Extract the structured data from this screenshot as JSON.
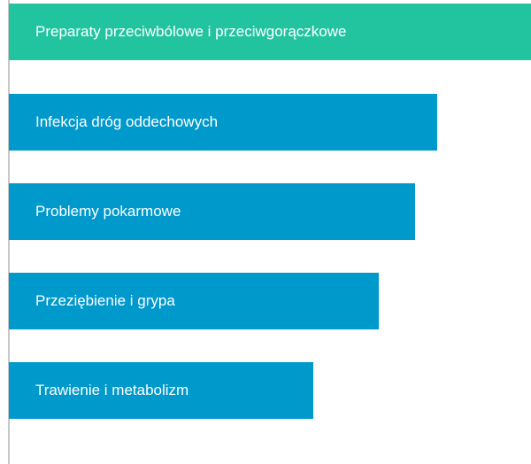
{
  "menu": {
    "items": [
      {
        "label": "Preparaty przeciwbólowe i przeciwgorączkowe"
      },
      {
        "label": "Infekcja dróg oddechowych"
      },
      {
        "label": "Problemy pokarmowe"
      },
      {
        "label": "Przeziębienie i grypa"
      },
      {
        "label": "Trawienie i metabolizm"
      }
    ]
  }
}
